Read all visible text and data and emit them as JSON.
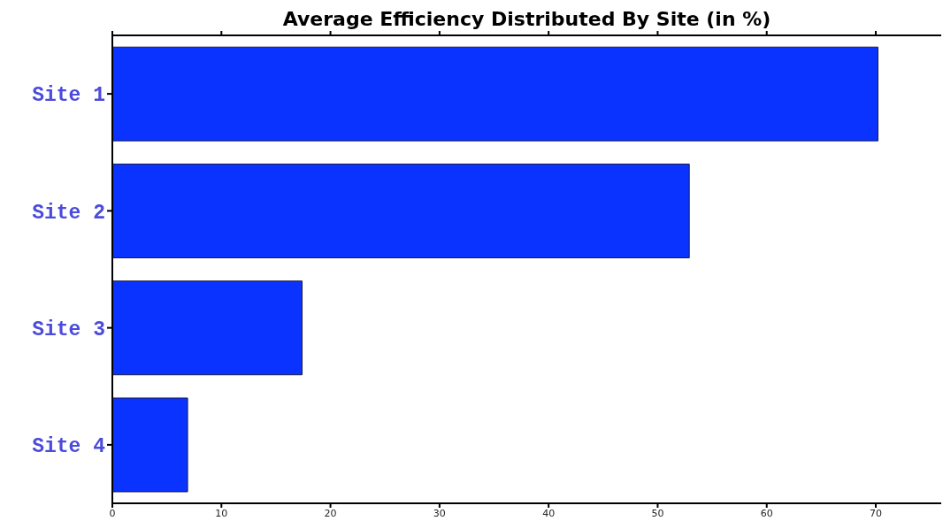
{
  "chart_data": {
    "type": "bar",
    "orientation": "horizontal",
    "title": "Average Efficiency Distributed By Site (in %)",
    "categories": [
      "Site 1",
      "Site 2",
      "Site 3",
      "Site 4"
    ],
    "values": [
      70.2,
      52.9,
      17.4,
      6.9
    ],
    "color": "#0a33ff",
    "xlim": [
      0,
      76
    ],
    "xticks": [
      0,
      10,
      20,
      30,
      40,
      50,
      60,
      70
    ],
    "grid": false,
    "legend": false
  }
}
